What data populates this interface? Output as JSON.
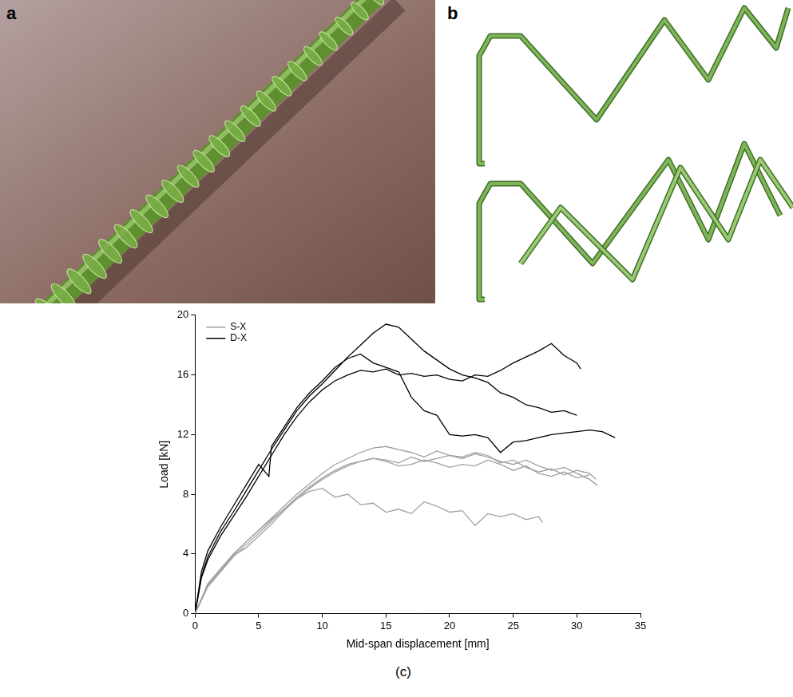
{
  "figure": {
    "panel_labels": [
      "a",
      "b"
    ]
  },
  "chart_data": {
    "type": "line",
    "caption": "(c)",
    "x_label": "Mid-span displacement [mm]",
    "y_label": "Load [kN]",
    "xlim": [
      0,
      35
    ],
    "xticks": [
      0,
      5,
      10,
      15,
      20,
      25,
      30,
      35
    ],
    "ylim": [
      0,
      20
    ],
    "yticks": [
      0,
      4,
      8,
      12,
      16,
      20
    ],
    "grid": false,
    "legend": "upper left",
    "series": [
      {
        "name": "S-X",
        "color": "#a0a0a0",
        "x": [
          0,
          1,
          2,
          3,
          4,
          5,
          6,
          7,
          8,
          9,
          10,
          11,
          12,
          13,
          14,
          15,
          16,
          17,
          18,
          19,
          20,
          21,
          22,
          23,
          24,
          25,
          26,
          27,
          28,
          29,
          30,
          31,
          31.6
        ],
        "values": [
          0,
          2,
          3,
          4,
          4.8,
          5.6,
          6.4,
          7.2,
          8,
          8.7,
          9.4,
          10,
          10.4,
          10.8,
          11.1,
          11.2,
          11,
          10.8,
          10.5,
          10.9,
          10.6,
          10.4,
          10.7,
          10.5,
          10.2,
          10,
          10.3,
          9.9,
          9.6,
          9.8,
          9.4,
          9,
          8.6
        ]
      },
      {
        "name": "S-X",
        "color": "#a0a0a0",
        "x": [
          0,
          1,
          2,
          3,
          4,
          5,
          6,
          7,
          8,
          9,
          10,
          11,
          12,
          13,
          14,
          15,
          16,
          17,
          18,
          19,
          20,
          21,
          22,
          23,
          24,
          25,
          26,
          27,
          28,
          29,
          30,
          31,
          31.5
        ],
        "values": [
          0,
          1.8,
          2.8,
          3.8,
          4.6,
          5.4,
          6.2,
          7,
          7.8,
          8.5,
          9.1,
          9.6,
          10,
          10.2,
          10.4,
          10.3,
          10.1,
          10.5,
          10.2,
          10.4,
          10.6,
          10.5,
          10.8,
          10.6,
          10.1,
          10.3,
          9.8,
          9.5,
          9.7,
          9.3,
          9.6,
          9.4,
          9
        ]
      },
      {
        "name": "S-X",
        "color": "#a0a0a0",
        "x": [
          0,
          1,
          2,
          3,
          4,
          5,
          6,
          7,
          8,
          9,
          10,
          11,
          12,
          13,
          14,
          15,
          16,
          17,
          18,
          19,
          20,
          21,
          22,
          23,
          24,
          25,
          26,
          27,
          28,
          29,
          30,
          31
        ],
        "values": [
          0,
          1.9,
          2.9,
          3.9,
          4.4,
          5.2,
          6,
          6.9,
          7.7,
          8.4,
          9,
          9.5,
          9.9,
          10.2,
          10.4,
          10.2,
          9.9,
          10,
          10.3,
          10.1,
          9.8,
          10,
          9.9,
          10.3,
          10,
          9.6,
          9.9,
          9.4,
          9.2,
          9.5,
          9.1,
          9.3
        ]
      },
      {
        "name": "S-X",
        "color": "#a0a0a0",
        "x": [
          0,
          1,
          2,
          3,
          4,
          5,
          6,
          7,
          8,
          9,
          10,
          11,
          12,
          13,
          14,
          15,
          16,
          17,
          18,
          19,
          20,
          21,
          22,
          23,
          24,
          25,
          26,
          27,
          27.3
        ],
        "values": [
          0,
          1.9,
          2.9,
          3.9,
          4.8,
          5.6,
          6.3,
          7,
          7.7,
          8.2,
          8.4,
          7.8,
          8,
          7.3,
          7.4,
          6.8,
          7,
          6.7,
          7.5,
          7.2,
          6.8,
          6.9,
          5.9,
          6.7,
          6.5,
          6.7,
          6.3,
          6.5,
          6.1
        ]
      },
      {
        "name": "D-X",
        "color": "#000000",
        "x": [
          0,
          0.5,
          1,
          2,
          3,
          4,
          5,
          6,
          7,
          8,
          9,
          10,
          11,
          12,
          13,
          14,
          15,
          16,
          17,
          18,
          19,
          20,
          21,
          22,
          23,
          24,
          25,
          26,
          27,
          28,
          29,
          30
        ],
        "values": [
          0,
          2.5,
          3.8,
          5.5,
          6.8,
          8.2,
          9.6,
          11,
          12.3,
          13.6,
          14.6,
          15.4,
          16.3,
          17.2,
          18,
          18.8,
          19.4,
          19.2,
          18.4,
          17.6,
          17,
          16.4,
          16,
          15.8,
          15.5,
          14.8,
          14.5,
          14,
          13.8,
          13.5,
          13.6,
          13.3
        ]
      },
      {
        "name": "D-X",
        "color": "#000000",
        "x": [
          0,
          0.5,
          1,
          2,
          3,
          4,
          5,
          5.8,
          6,
          7,
          8,
          9,
          10,
          11,
          12,
          13,
          14,
          15,
          16,
          17,
          18,
          19,
          20,
          21,
          22,
          23,
          24,
          25,
          26,
          27,
          28,
          29,
          30,
          31,
          32,
          33
        ],
        "values": [
          0,
          2.8,
          4.2,
          5.8,
          7.2,
          8.6,
          10,
          9.2,
          11.2,
          12.5,
          13.8,
          14.8,
          15.6,
          16.5,
          17.1,
          17.4,
          16.8,
          16.5,
          16.2,
          14.5,
          13.6,
          13.3,
          12,
          11.9,
          12,
          11.8,
          10.8,
          11.5,
          11.6,
          11.8,
          12,
          12.1,
          12.2,
          12.3,
          12.2,
          11.8
        ]
      },
      {
        "name": "D-X",
        "color": "#000000",
        "x": [
          0,
          0.5,
          1,
          2,
          3,
          4,
          5,
          6,
          7,
          8,
          9,
          10,
          11,
          12,
          13,
          14,
          15,
          16,
          17,
          18,
          19,
          20,
          21,
          22,
          23,
          24,
          25,
          26,
          27,
          28,
          29,
          30,
          30.3
        ],
        "values": [
          0,
          2.4,
          3.6,
          5.2,
          6.5,
          7.8,
          9.2,
          10.6,
          12,
          13.2,
          14.2,
          15,
          15.6,
          16,
          16.3,
          16.2,
          16.4,
          16,
          16.1,
          15.9,
          16,
          15.7,
          15.6,
          16,
          15.9,
          16.3,
          16.8,
          17.2,
          17.6,
          18.1,
          17.3,
          16.8,
          16.4
        ]
      }
    ]
  }
}
